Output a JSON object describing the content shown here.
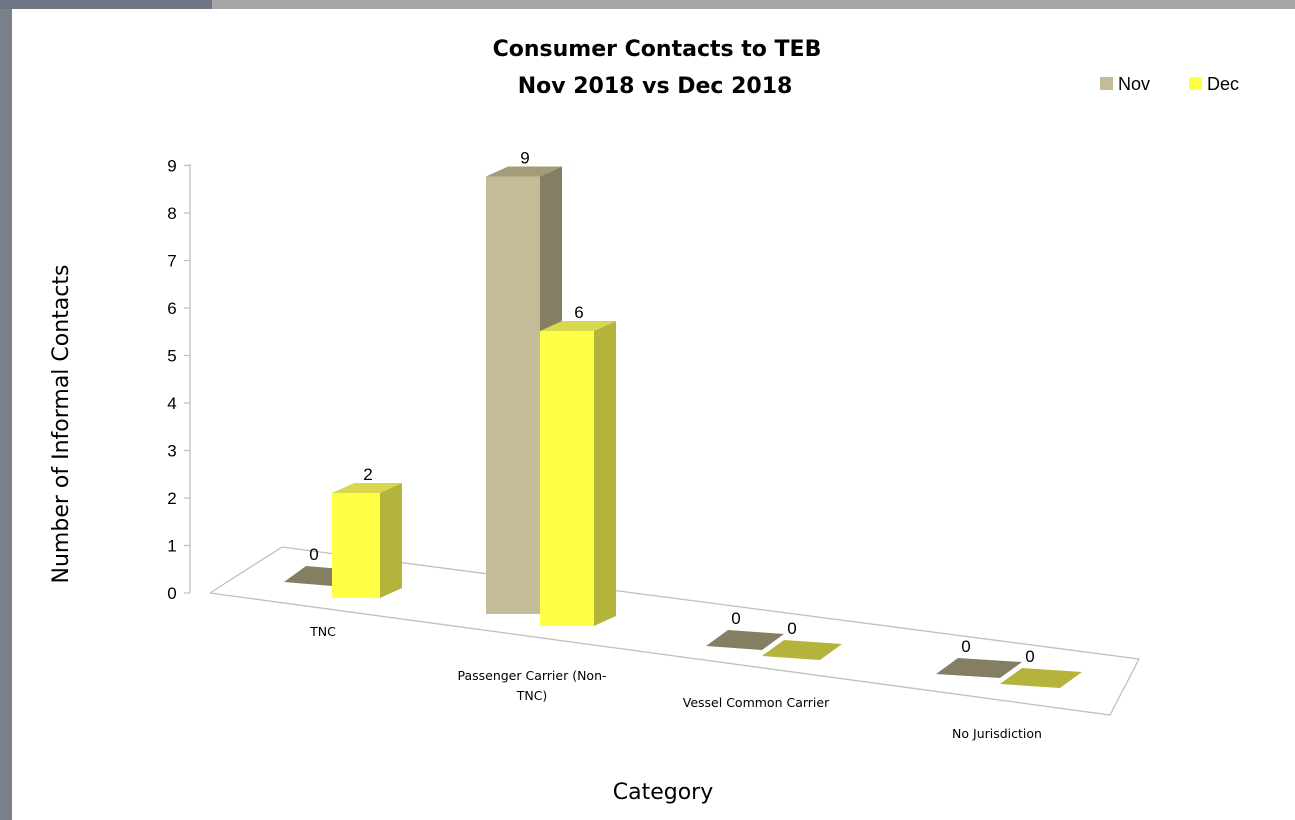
{
  "chart_data": {
    "type": "bar",
    "title": "Consumer  Contacts to TEB",
    "subtitle": "Nov 2018 vs Dec 2018",
    "xlabel": "Category",
    "ylabel": "Number of Informal  Contacts",
    "ylim": [
      0,
      9
    ],
    "yticks": [
      "0",
      "1",
      "2",
      "3",
      "4",
      "5",
      "6",
      "7",
      "8",
      "9"
    ],
    "categories": [
      [
        "TNC"
      ],
      [
        "Passenger Carrier (Non-",
        "TNC)"
      ],
      [
        "Vessel Common Carrier"
      ],
      [
        "No Jurisdiction"
      ]
    ],
    "series": [
      {
        "name": "Nov",
        "values": [
          0,
          9,
          0,
          0
        ]
      },
      {
        "name": "Dec",
        "values": [
          2,
          6,
          0,
          0
        ]
      }
    ],
    "legend_position": "top-right",
    "grid": false,
    "colors": {
      "nov_front": "#c4bc98",
      "nov_top": "#a49c78",
      "nov_side": "#847f62",
      "dec_front": "#ffff45",
      "dec_top": "#d8d84e",
      "dec_side": "#b4b43c"
    }
  }
}
